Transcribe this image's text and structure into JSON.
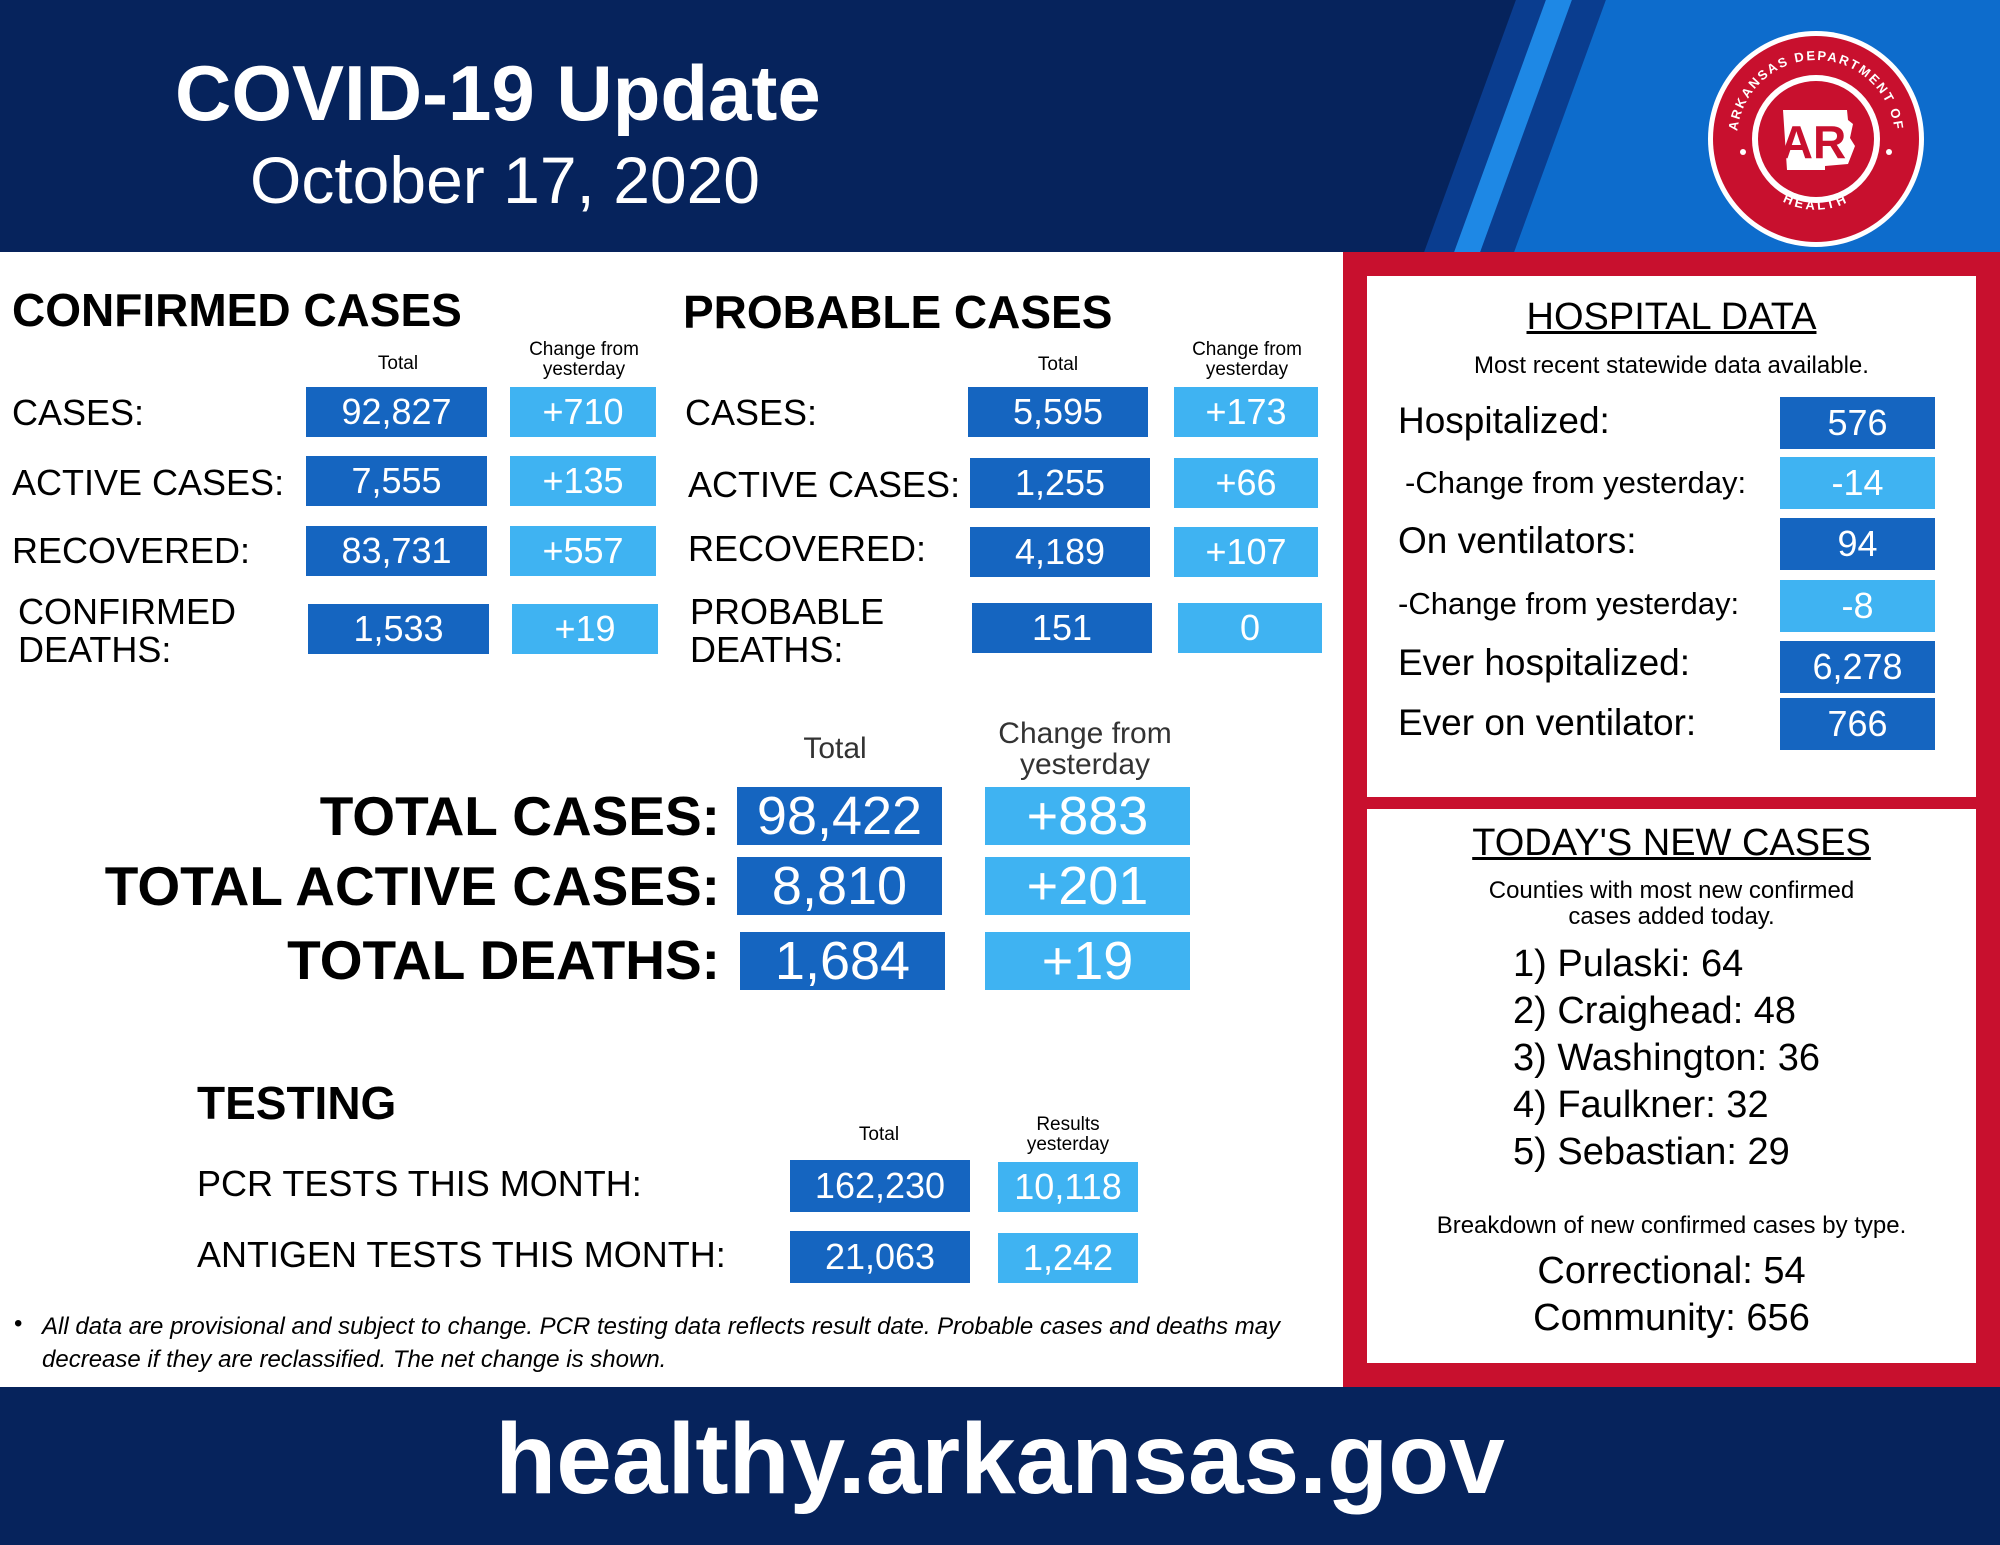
{
  "header": {
    "title": "COVID-19 Update",
    "date": "October 17, 2020",
    "logo": {
      "top_text": "ARKANSAS DEPARTMENT OF",
      "bottom_text": "HEALTH",
      "mark": "AR"
    }
  },
  "confirmed": {
    "heading": "CONFIRMED CASES",
    "col_total": "Total",
    "col_change": "Change from yesterday",
    "rows": [
      {
        "label": "CASES:",
        "total": "92,827",
        "change": "+710"
      },
      {
        "label": "ACTIVE CASES:",
        "total": "7,555",
        "change": "+135"
      },
      {
        "label": "RECOVERED:",
        "total": "83,731",
        "change": "+557"
      },
      {
        "label_1": "CONFIRMED",
        "label_2": "DEATHS:",
        "total": "1,533",
        "change": "+19"
      }
    ]
  },
  "probable": {
    "heading": "PROBABLE CASES",
    "col_total": "Total",
    "col_change": "Change from yesterday",
    "rows": [
      {
        "label": "CASES:",
        "total": "5,595",
        "change": "+173"
      },
      {
        "label": "ACTIVE CASES:",
        "total": "1,255",
        "change": "+66"
      },
      {
        "label": "RECOVERED:",
        "total": "4,189",
        "change": "+107"
      },
      {
        "label_1": "PROBABLE",
        "label_2": "DEATHS:",
        "total": "151",
        "change": "0"
      }
    ]
  },
  "totals": {
    "col_total": "Total",
    "col_change": "Change from yesterday",
    "rows": [
      {
        "label": "TOTAL CASES:",
        "total": "98,422",
        "change": "+883"
      },
      {
        "label": "TOTAL ACTIVE CASES:",
        "total": "8,810",
        "change": "+201"
      },
      {
        "label": "TOTAL DEATHS:",
        "total": "1,684",
        "change": "+19"
      }
    ]
  },
  "testing": {
    "heading": "TESTING",
    "col_total": "Total",
    "col_results": "Results yesterday",
    "rows": [
      {
        "label": "PCR TESTS THIS MONTH:",
        "total": "162,230",
        "yesterday": "10,118"
      },
      {
        "label": "ANTIGEN TESTS THIS MONTH:",
        "total": "21,063",
        "yesterday": "1,242"
      }
    ]
  },
  "note": "All data are provisional and subject to change. PCR testing data reflects result date. Probable cases and deaths may decrease if they are reclassified. The net change is shown.",
  "hospital": {
    "heading": "HOSPITAL DATA",
    "subheading": "Most recent statewide data available.",
    "rows": [
      {
        "label": "Hospitalized:",
        "value": "576"
      },
      {
        "label": "-Change from yesterday:",
        "value": "-14"
      },
      {
        "label": "On ventilators:",
        "value": "94"
      },
      {
        "label": "-Change from yesterday:",
        "value": "-8"
      },
      {
        "label": "Ever hospitalized:",
        "value": "6,278"
      },
      {
        "label": "Ever on ventilator:",
        "value": "766"
      }
    ]
  },
  "new_cases": {
    "heading": "TODAY'S NEW CASES",
    "subheading_1": "Counties with most new confirmed",
    "subheading_2": "cases added today.",
    "counties": [
      "1) Pulaski: 64",
      "2) Craighead: 48",
      "3) Washington: 36",
      "4) Faulkner: 32",
      "5) Sebastian: 29"
    ],
    "breakdown_heading": "Breakdown of new confirmed cases by type.",
    "breakdown": [
      "Correctional: 54",
      "Community: 656"
    ]
  },
  "footer": {
    "url": "healthy.arkansas.gov"
  },
  "colors": {
    "navy": "#06235c",
    "dark_box": "#1565c0",
    "light_box": "#3fb3f2",
    "red": "#c8102e"
  }
}
